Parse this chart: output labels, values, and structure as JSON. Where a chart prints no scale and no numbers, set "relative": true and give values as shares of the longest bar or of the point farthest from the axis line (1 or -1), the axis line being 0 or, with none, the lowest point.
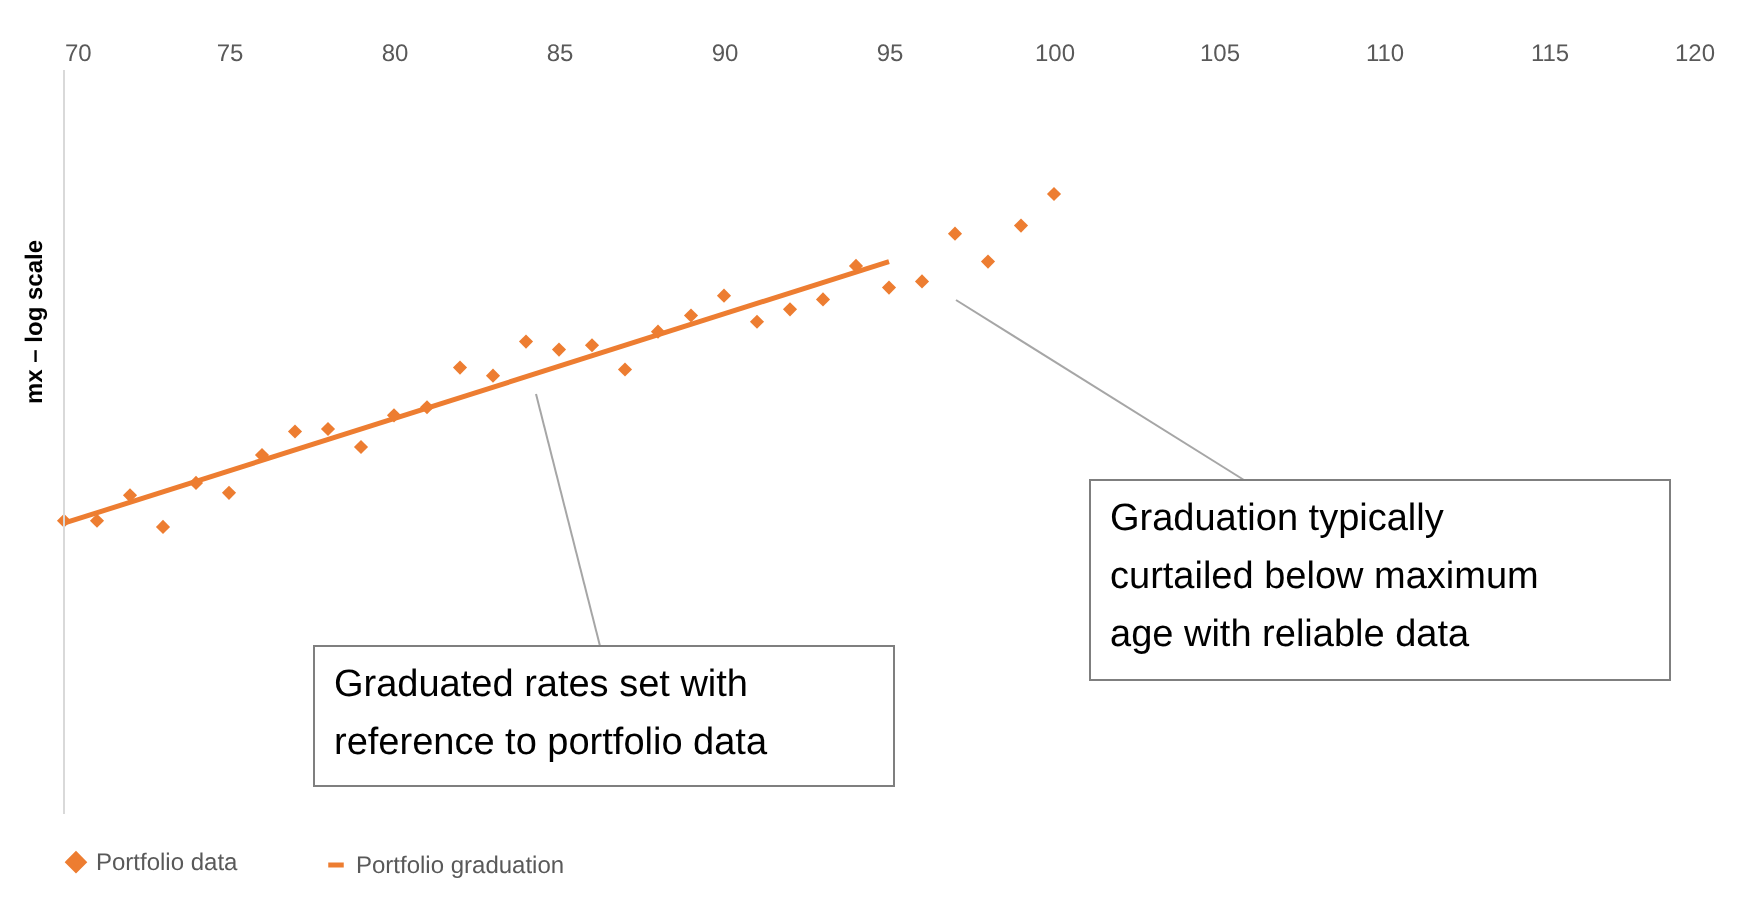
{
  "chart_data": {
    "type": "line",
    "relative": true,
    "ylabel": "mx – log scale",
    "xlim": [
      70,
      120
    ],
    "xticks": [
      70,
      75,
      80,
      85,
      90,
      95,
      100,
      105,
      110,
      115,
      120
    ],
    "x": [
      70,
      71,
      72,
      73,
      74,
      75,
      76,
      77,
      78,
      79,
      80,
      81,
      82,
      83,
      84,
      85,
      86,
      87,
      88,
      89,
      90,
      91,
      92,
      93,
      94,
      95,
      96,
      97,
      98,
      99,
      100
    ],
    "series": [
      {
        "name": "Portfolio data",
        "type": "scatter",
        "marker": "diamond",
        "color": "#ed7d31",
        "values": [
          0.473,
          0.473,
          0.514,
          0.463,
          0.534,
          0.518,
          0.579,
          0.617,
          0.621,
          0.592,
          0.643,
          0.656,
          0.72,
          0.707,
          0.762,
          0.749,
          0.756,
          0.717,
          0.778,
          0.804,
          0.836,
          0.794,
          0.814,
          0.83,
          0.884,
          0.849,
          0.859,
          0.936,
          0.891,
          0.949,
          1
        ]
      },
      {
        "name": "Portfolio graduation",
        "line_style": "solid",
        "color": "#ed7d31",
        "x": [
          70,
          95
        ],
        "values": [
          0.469,
          0.891
        ]
      }
    ],
    "annotations": [
      "Graduated rates set with\nreference to portfolio data",
      "Graduation typically\ncurtailed below maximum\nage with reliable data"
    ],
    "grid": false,
    "legend": "bottom"
  }
}
